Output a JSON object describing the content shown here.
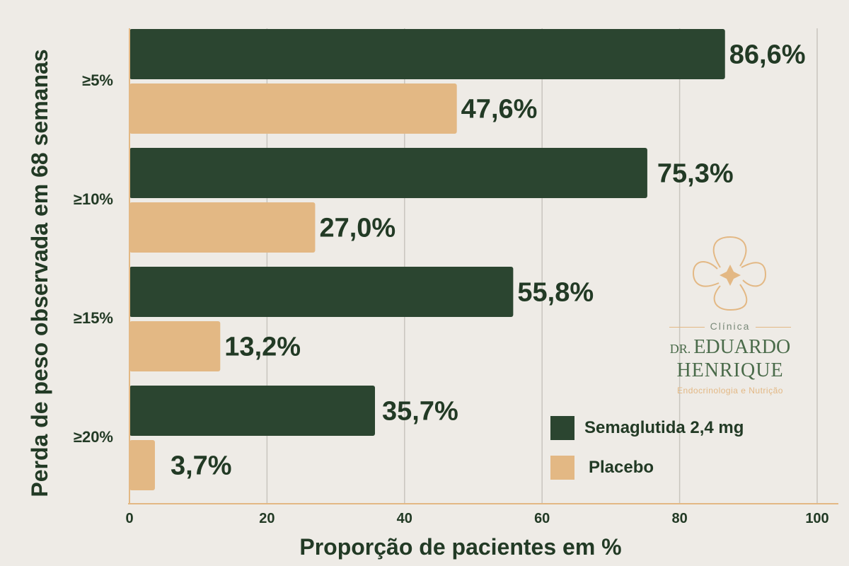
{
  "chart_data": {
    "type": "bar",
    "orientation": "horizontal",
    "categories": [
      "≥5%",
      "≥10%",
      "≥15%",
      "≥20%"
    ],
    "series": [
      {
        "name": "Semaglutida 2,4 mg",
        "values": [
          86.6,
          75.3,
          55.8,
          35.7
        ],
        "labels": [
          "86,6%",
          "75,3%",
          "55,8%",
          "35,7%"
        ],
        "color": "#2b4530"
      },
      {
        "name": "Placebo",
        "values": [
          47.6,
          27.0,
          13.2,
          3.7
        ],
        "labels": [
          "47,6%",
          "27,0%",
          "13,2%",
          "3,7%"
        ],
        "color": "#e3b884"
      }
    ],
    "xlabel": "Proporção de pacientes em %",
    "ylabel": "Perda de peso observada em 68 semanas",
    "xlim": [
      0,
      100
    ],
    "xticks": [
      0,
      20,
      40,
      60,
      80,
      100
    ],
    "grid": "vertical",
    "legend_position": "bottom-right"
  },
  "colors": {
    "background": "#eeebe6",
    "text": "#223a25",
    "grid": "#c8c5be",
    "axis": "#e3b884"
  },
  "logo": {
    "icon": "flower-logo-icon",
    "clinic_label": "Clínica",
    "name_prefix": "DR.",
    "name_line1": "EDUARDO",
    "name_line2": "HENRIQUE",
    "specialty": "Endocrinologia e Nutrição"
  }
}
